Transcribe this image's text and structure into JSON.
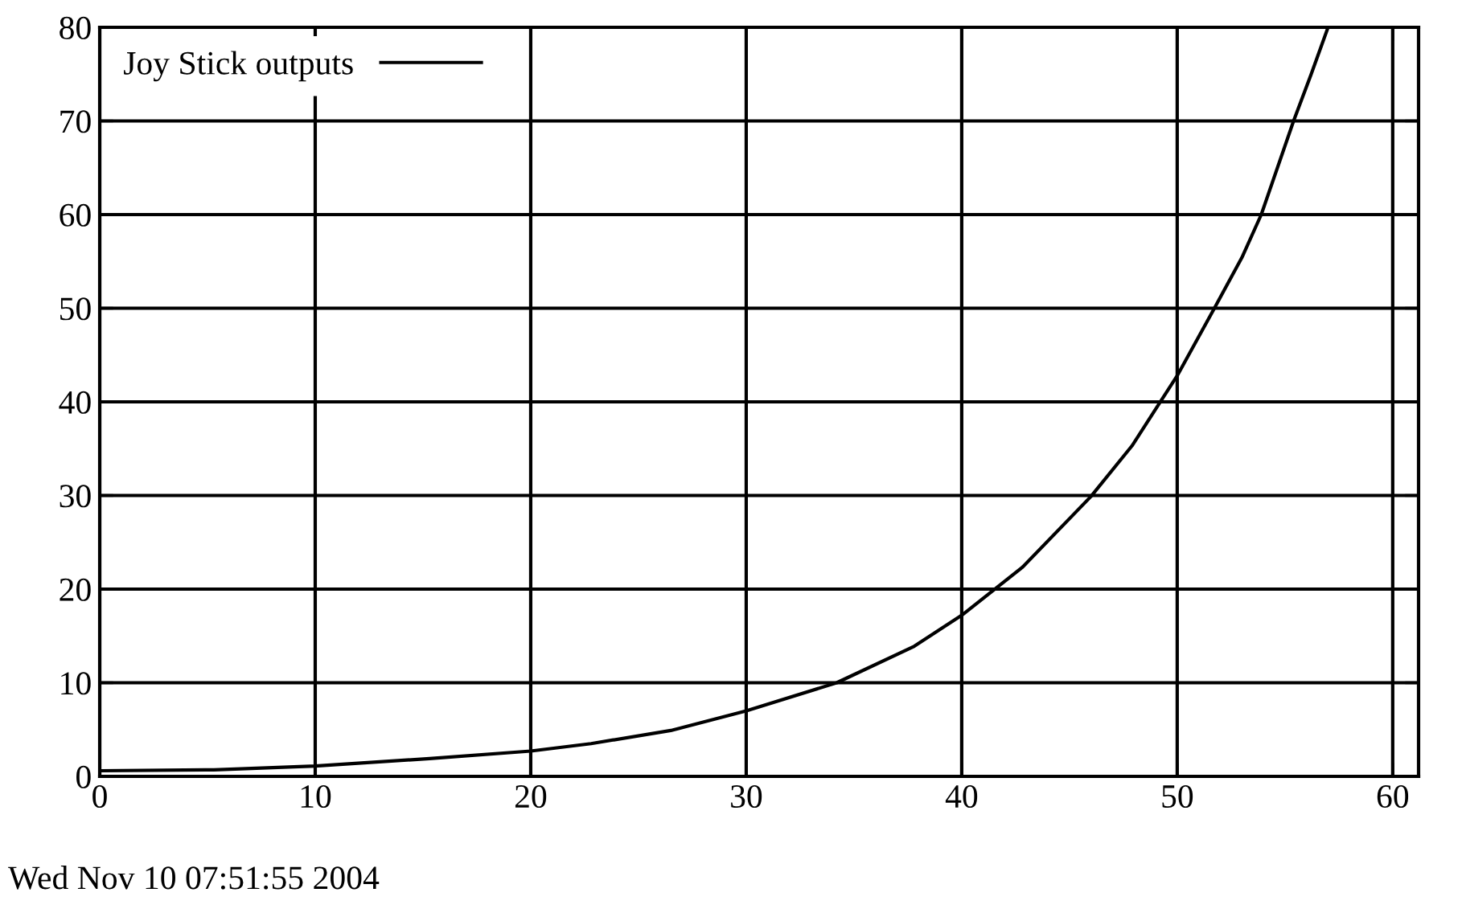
{
  "chart_data": {
    "type": "line",
    "xlim": [
      0,
      61.2
    ],
    "ylim": [
      0,
      80
    ],
    "xticks": [
      0,
      10,
      20,
      30,
      40,
      50,
      60
    ],
    "yticks": [
      0,
      10,
      20,
      30,
      40,
      50,
      60,
      70,
      80
    ],
    "grid": true,
    "legend": "top left",
    "line_style": "solid",
    "series": [
      {
        "name": "Joy Stick outputs",
        "color": "#000000",
        "x": [
          0,
          5.3,
          10,
          15.3,
          20,
          22.8,
          26.5,
          30,
          34.2,
          37.8,
          40,
          42.8,
          46.0,
          47.9,
          50,
          51.7,
          53.0,
          53.9,
          55.4,
          56.2,
          57.0
        ],
        "values": [
          0.6,
          0.7,
          1.1,
          1.9,
          2.7,
          3.5,
          4.9,
          7.0,
          10.0,
          13.9,
          17.2,
          22.3,
          29.9,
          35.3,
          42.8,
          49.9,
          55.4,
          60.0,
          70.0,
          74.9,
          80.0
        ]
      }
    ],
    "annotations": [
      "Wed Nov 10 07:51:55 2004"
    ]
  }
}
